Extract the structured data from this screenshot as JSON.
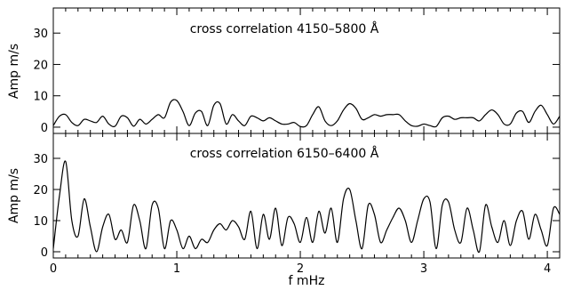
{
  "chart_data": [
    {
      "type": "line",
      "title": "cross correlation 4150–5800 Å",
      "xlabel": "",
      "ylabel": "Amp m/s",
      "xlim": [
        0,
        4.1
      ],
      "ylim": [
        -2,
        38
      ],
      "x_ticks": [
        0,
        1,
        2,
        3,
        4
      ],
      "y_ticks": [
        0,
        10,
        20,
        30
      ],
      "y_tick_labels": [
        "0",
        "10",
        "20",
        "30"
      ],
      "x": [
        0.0,
        0.05,
        0.1,
        0.15,
        0.2,
        0.25,
        0.3,
        0.35,
        0.4,
        0.45,
        0.5,
        0.55,
        0.6,
        0.65,
        0.7,
        0.75,
        0.8,
        0.85,
        0.9,
        0.95,
        1.0,
        1.05,
        1.1,
        1.15,
        1.2,
        1.25,
        1.3,
        1.35,
        1.4,
        1.45,
        1.5,
        1.55,
        1.6,
        1.65,
        1.7,
        1.75,
        1.8,
        1.85,
        1.9,
        1.95,
        2.0,
        2.05,
        2.1,
        2.15,
        2.2,
        2.25,
        2.3,
        2.35,
        2.4,
        2.45,
        2.5,
        2.55,
        2.6,
        2.65,
        2.7,
        2.75,
        2.8,
        2.85,
        2.9,
        2.95,
        3.0,
        3.05,
        3.1,
        3.15,
        3.2,
        3.25,
        3.3,
        3.35,
        3.4,
        3.45,
        3.5,
        3.55,
        3.6,
        3.65,
        3.7,
        3.75,
        3.8,
        3.85,
        3.9,
        3.95,
        4.0,
        4.05,
        4.1
      ],
      "values": [
        0.5,
        3.5,
        4,
        1.5,
        0.5,
        2.5,
        2,
        1.5,
        3.5,
        1,
        0.3,
        3.5,
        3,
        0.3,
        2.5,
        1,
        2.5,
        4,
        3,
        8,
        8.5,
        5,
        0.5,
        4.5,
        5,
        0.5,
        7,
        7.5,
        1,
        4,
        2,
        0.5,
        3.5,
        3,
        2,
        3,
        2,
        1,
        1,
        1.5,
        0.2,
        0.5,
        4,
        6.5,
        2,
        0.5,
        2,
        5.5,
        7.5,
        6,
        2.5,
        3,
        4,
        3.5,
        4,
        4,
        4,
        2,
        0.5,
        0.3,
        1,
        0.5,
        0.2,
        3,
        3.5,
        2.5,
        3,
        3,
        3,
        2,
        4,
        5.5,
        4,
        1,
        1,
        4.5,
        5,
        1.5,
        5,
        7,
        4,
        1,
        3.5
      ]
    },
    {
      "type": "line",
      "title": "cross correlation 6150–6400 Å",
      "xlabel": "f mHz",
      "ylabel": "Amp m/s",
      "xlim": [
        0,
        4.1
      ],
      "ylim": [
        -2,
        38
      ],
      "x_ticks": [
        0,
        1,
        2,
        3,
        4
      ],
      "x_tick_labels": [
        "0",
        "1",
        "2",
        "3",
        "4"
      ],
      "y_ticks": [
        0,
        10,
        20,
        30
      ],
      "y_tick_labels": [
        "0",
        "10",
        "20",
        "30"
      ],
      "x": [
        0.0,
        0.05,
        0.1,
        0.15,
        0.2,
        0.25,
        0.3,
        0.35,
        0.4,
        0.45,
        0.5,
        0.55,
        0.6,
        0.65,
        0.7,
        0.75,
        0.8,
        0.85,
        0.9,
        0.95,
        1.0,
        1.05,
        1.1,
        1.15,
        1.2,
        1.25,
        1.3,
        1.35,
        1.4,
        1.45,
        1.5,
        1.55,
        1.6,
        1.65,
        1.7,
        1.75,
        1.8,
        1.85,
        1.9,
        1.95,
        2.0,
        2.05,
        2.1,
        2.15,
        2.2,
        2.25,
        2.3,
        2.35,
        2.4,
        2.45,
        2.5,
        2.55,
        2.6,
        2.65,
        2.7,
        2.75,
        2.8,
        2.85,
        2.9,
        2.95,
        3.0,
        3.05,
        3.1,
        3.15,
        3.2,
        3.25,
        3.3,
        3.35,
        3.4,
        3.45,
        3.5,
        3.55,
        3.6,
        3.65,
        3.7,
        3.75,
        3.8,
        3.85,
        3.9,
        3.95,
        4.0,
        4.05,
        4.1
      ],
      "values": [
        1,
        18,
        29,
        10,
        5,
        17,
        8,
        0,
        8,
        12,
        4,
        7,
        3,
        15,
        10,
        1,
        15,
        14,
        1,
        10,
        7,
        1,
        5,
        1,
        4,
        3,
        7,
        9,
        7,
        10,
        8,
        4,
        13,
        1,
        12,
        4,
        14,
        2,
        11,
        9,
        3,
        11,
        3,
        13,
        6,
        14,
        3,
        17,
        20,
        10,
        1,
        15,
        12,
        3,
        7,
        11,
        14,
        10,
        3,
        10,
        17,
        16,
        1,
        15,
        16,
        7,
        3,
        14,
        7,
        0,
        15,
        8,
        3,
        10,
        2,
        10,
        13,
        4,
        12,
        7,
        2,
        14,
        12
      ]
    }
  ]
}
